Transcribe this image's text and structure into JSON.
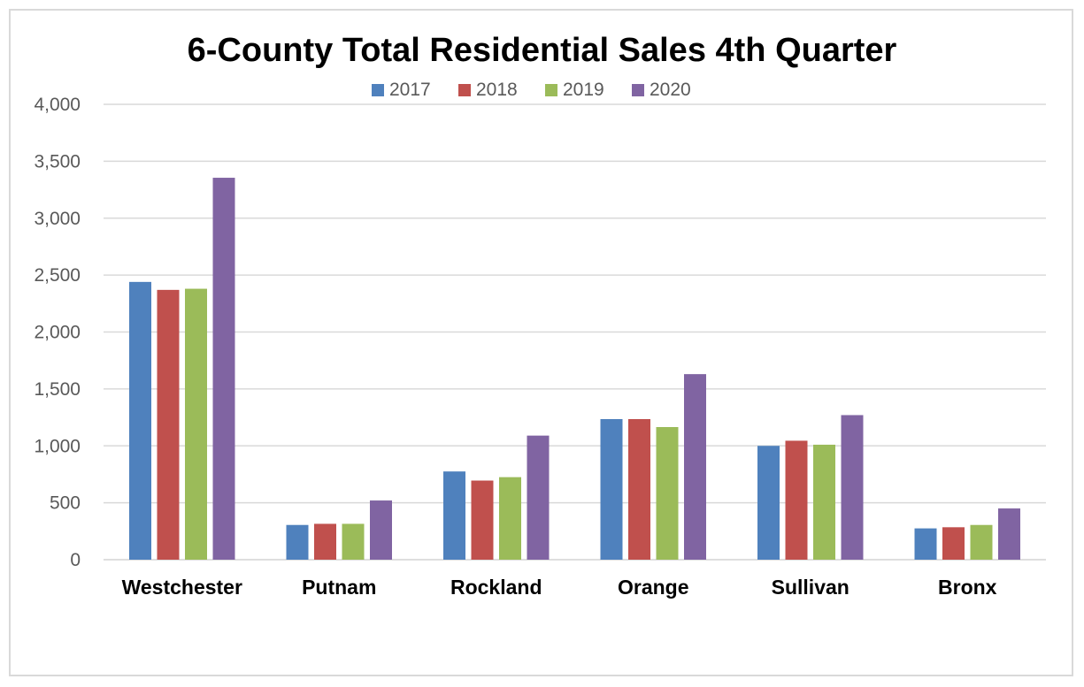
{
  "chart_data": {
    "type": "bar",
    "title": "6-County Total Residential Sales 4th Quarter",
    "xlabel": "",
    "ylabel": "",
    "ylim": [
      0,
      4000
    ],
    "yticks": [
      0,
      500,
      1000,
      1500,
      2000,
      2500,
      3000,
      3500,
      4000
    ],
    "ytick_labels": [
      "0",
      "500",
      "1,000",
      "1,500",
      "2,000",
      "2,500",
      "3,000",
      "3,500",
      "4,000"
    ],
    "grid": true,
    "legend_position": "top",
    "categories": [
      "Westchester",
      "Putnam",
      "Rockland",
      "Orange",
      "Sullivan",
      "Bronx"
    ],
    "series": [
      {
        "name": "2017",
        "color": "#4f81bd",
        "values": [
          2440,
          305,
          775,
          1235,
          1000,
          275
        ]
      },
      {
        "name": "2018",
        "color": "#c0504d",
        "values": [
          2370,
          315,
          695,
          1235,
          1045,
          285
        ]
      },
      {
        "name": "2019",
        "color": "#9bbb59",
        "values": [
          2380,
          315,
          725,
          1165,
          1010,
          305
        ]
      },
      {
        "name": "2020",
        "color": "#8064a2",
        "values": [
          3355,
          520,
          1090,
          1630,
          1270,
          450
        ]
      }
    ]
  }
}
